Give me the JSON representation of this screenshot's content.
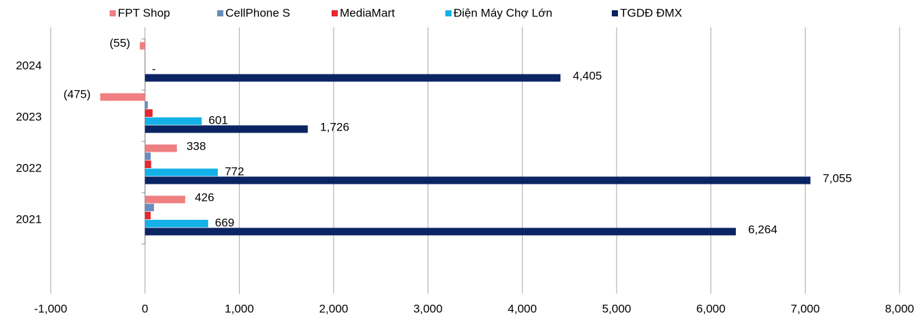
{
  "chart_data": {
    "type": "hbar",
    "legend": "top",
    "grid": true,
    "categories": [
      "2021",
      "2022",
      "2023",
      "2024"
    ],
    "series": [
      {
        "name": "FPT Shop",
        "color": "#ef7f80",
        "values": [
          426,
          338,
          -475,
          -55
        ],
        "value_labels": [
          "426",
          "338",
          "(475)",
          "(55)"
        ]
      },
      {
        "name": "CellPhone S",
        "color": "#6a8cbd",
        "values": [
          95,
          60,
          30,
          0
        ]
      },
      {
        "name": "MediaMart",
        "color": "#e7262e",
        "values": [
          60,
          65,
          80,
          0
        ]
      },
      {
        "name": "Điện Máy Chợ Lớn",
        "color": "#13b1e7",
        "values": [
          669,
          772,
          601,
          0
        ],
        "value_labels": [
          "669",
          "772",
          "601",
          "-"
        ]
      },
      {
        "name": "TGDĐ ĐMX",
        "color": "#0b2463",
        "values": [
          6264,
          7055,
          1726,
          4405
        ],
        "value_labels": [
          "6,264",
          "7,055",
          "1,726",
          "4,405"
        ]
      }
    ],
    "xlim": [
      -1000,
      8000
    ],
    "xticks": [
      {
        "value": -1000,
        "label": "-1,000"
      },
      0,
      {
        "value": 1000,
        "label": "1,000"
      },
      {
        "value": 2000,
        "label": "2,000"
      },
      {
        "value": 3000,
        "label": "3,000"
      },
      {
        "value": 4000,
        "label": "4,000"
      },
      {
        "value": 5000,
        "label": "5,000"
      },
      {
        "value": 6000,
        "label": "6,000"
      },
      {
        "value": 7000,
        "label": "7,000"
      },
      {
        "value": 8000,
        "label": "8,000"
      }
    ]
  }
}
